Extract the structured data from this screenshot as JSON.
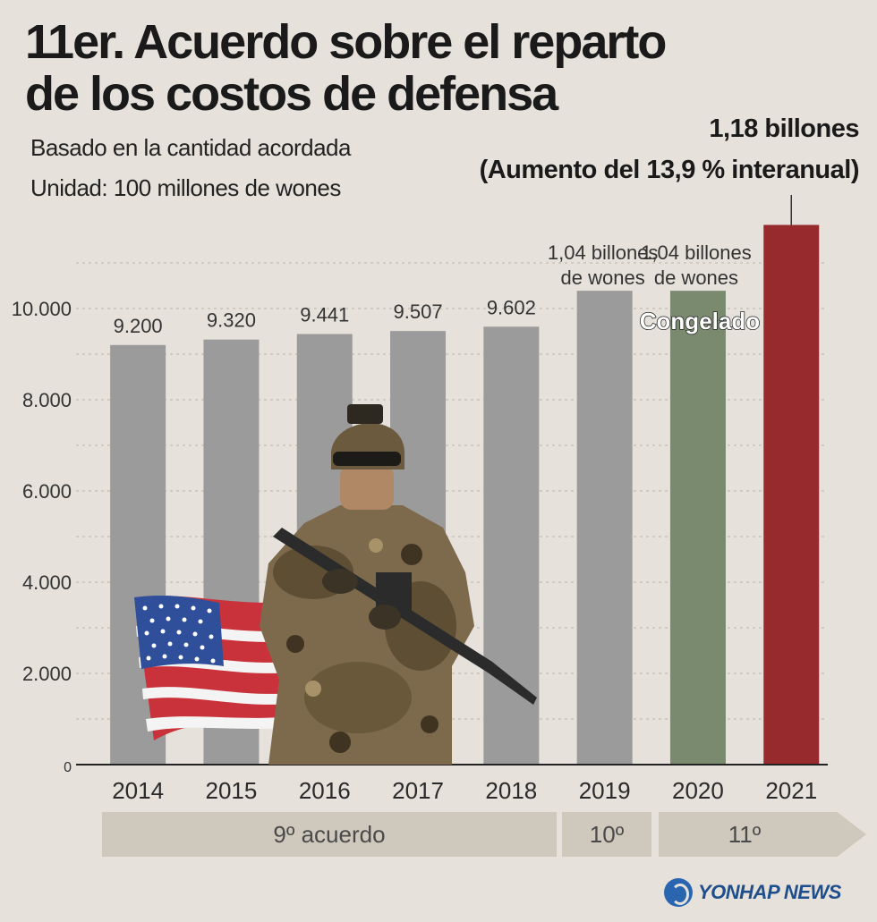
{
  "title_line1": "11er. Acuerdo sobre el reparto",
  "title_line2": "de los costos de defensa",
  "subtitle_basis": "Basado en la cantidad acordada",
  "subtitle_unit": "Unidad: 100 millones de wones",
  "callout_value": "1,18 billones",
  "callout_change": "(Aumento del 13,9 % interanual)",
  "eras": [
    {
      "label": "9º acuerdo"
    },
    {
      "label": "10º"
    },
    {
      "label": "11º"
    }
  ],
  "logo_text": "YONHAP NEWS",
  "colors": {
    "background": "#e6e2db",
    "bar_gray": "#9b9b9b",
    "bar_frozen": "#7a8a6f",
    "bar_2021": "#972a2d",
    "era_band": "#cfc8bc"
  },
  "chart_data": {
    "type": "bar",
    "categories": [
      "2014",
      "2015",
      "2016",
      "2017",
      "2018",
      "2019",
      "2020",
      "2021"
    ],
    "values": [
      9200,
      9320,
      9441,
      9507,
      9602,
      10389,
      10389,
      11833
    ],
    "value_labels": [
      "9.200",
      "9.320",
      "9.441",
      "9.507",
      "9.602",
      "",
      "",
      ""
    ],
    "upper_labels": [
      {
        "index": 5,
        "line1": "1,04 billones",
        "line2": "de wones"
      },
      {
        "index": 6,
        "line1": "1,04 billones",
        "line2": "de wones"
      }
    ],
    "annotation_2020": "Congelado",
    "bar_colors": [
      "#9b9b9b",
      "#9b9b9b",
      "#9b9b9b",
      "#9b9b9b",
      "#9b9b9b",
      "#9b9b9b",
      "#7a8a6f",
      "#972a2d"
    ],
    "yticks": [
      {
        "value": 0,
        "label": "0"
      },
      {
        "value": 2000,
        "label": "2.000"
      },
      {
        "value": 4000,
        "label": "4.000"
      },
      {
        "value": 6000,
        "label": "6.000"
      },
      {
        "value": 8000,
        "label": "8.000"
      },
      {
        "value": 10000,
        "label": "10.000"
      }
    ],
    "ylim": [
      0,
      12000
    ],
    "grid": true,
    "xlabel": "",
    "ylabel": ""
  }
}
